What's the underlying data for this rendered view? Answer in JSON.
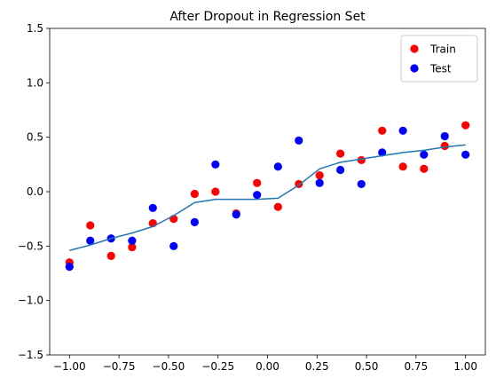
{
  "chart_data": {
    "type": "scatter",
    "title": "After Dropout in Regression Set",
    "xlabel": "",
    "ylabel": "",
    "xlim": [
      -1.1,
      1.1
    ],
    "ylim": [
      -1.5,
      1.5
    ],
    "x_ticks": [
      -1.0,
      -0.75,
      -0.5,
      -0.25,
      0.0,
      0.25,
      0.5,
      0.75,
      1.0
    ],
    "x_tick_labels": [
      "−1.00",
      "−0.75",
      "−0.50",
      "−0.25",
      "0.00",
      "0.25",
      "0.50",
      "0.75",
      "1.00"
    ],
    "y_ticks": [
      -1.5,
      -1.0,
      -0.5,
      0.0,
      0.5,
      1.0,
      1.5
    ],
    "y_tick_labels": [
      "−1.5",
      "−1.0",
      "−0.5",
      "0.0",
      "0.5",
      "1.0",
      "1.5"
    ],
    "grid": false,
    "legend_position": "top-right",
    "series": [
      {
        "name": "Train",
        "kind": "scatter",
        "color": "#ff0000",
        "points": [
          [
            -1.0,
            -0.65
          ],
          [
            -0.895,
            -0.31
          ],
          [
            -0.79,
            -0.59
          ],
          [
            -0.684,
            -0.51
          ],
          [
            -0.579,
            -0.29
          ],
          [
            -0.474,
            -0.25
          ],
          [
            -0.368,
            -0.02
          ],
          [
            -0.263,
            0.0
          ],
          [
            -0.158,
            -0.2
          ],
          [
            -0.053,
            0.08
          ],
          [
            0.053,
            -0.14
          ],
          [
            0.158,
            0.07
          ],
          [
            0.263,
            0.15
          ],
          [
            0.368,
            0.35
          ],
          [
            0.474,
            0.29
          ],
          [
            0.579,
            0.56
          ],
          [
            0.684,
            0.23
          ],
          [
            0.79,
            0.21
          ],
          [
            0.895,
            0.42
          ],
          [
            1.0,
            0.61
          ]
        ]
      },
      {
        "name": "Test",
        "kind": "scatter",
        "color": "#0000ff",
        "points": [
          [
            -1.0,
            -0.69
          ],
          [
            -0.895,
            -0.45
          ],
          [
            -0.79,
            -0.43
          ],
          [
            -0.684,
            -0.45
          ],
          [
            -0.579,
            -0.15
          ],
          [
            -0.474,
            -0.5
          ],
          [
            -0.368,
            -0.28
          ],
          [
            -0.263,
            0.25
          ],
          [
            -0.158,
            -0.21
          ],
          [
            -0.053,
            -0.03
          ],
          [
            0.053,
            0.23
          ],
          [
            0.158,
            0.47
          ],
          [
            0.263,
            0.08
          ],
          [
            0.368,
            0.2
          ],
          [
            0.474,
            0.07
          ],
          [
            0.579,
            0.36
          ],
          [
            0.684,
            0.56
          ],
          [
            0.79,
            0.34
          ],
          [
            0.895,
            0.51
          ],
          [
            1.0,
            0.34
          ]
        ]
      },
      {
        "name": "",
        "kind": "line",
        "color": "#1f77b4",
        "points": [
          [
            -1.0,
            -0.54
          ],
          [
            -0.895,
            -0.49
          ],
          [
            -0.79,
            -0.43
          ],
          [
            -0.684,
            -0.38
          ],
          [
            -0.579,
            -0.32
          ],
          [
            -0.474,
            -0.22
          ],
          [
            -0.368,
            -0.1
          ],
          [
            -0.263,
            -0.07
          ],
          [
            -0.158,
            -0.07
          ],
          [
            -0.053,
            -0.07
          ],
          [
            0.053,
            -0.06
          ],
          [
            0.158,
            0.06
          ],
          [
            0.263,
            0.21
          ],
          [
            0.368,
            0.27
          ],
          [
            0.474,
            0.3
          ],
          [
            0.579,
            0.33
          ],
          [
            0.684,
            0.36
          ],
          [
            0.79,
            0.38
          ],
          [
            0.895,
            0.41
          ],
          [
            1.0,
            0.43
          ]
        ]
      }
    ]
  }
}
